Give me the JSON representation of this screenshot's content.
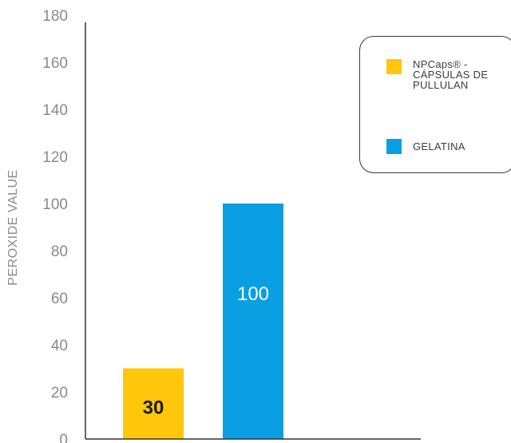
{
  "chart_data": {
    "type": "bar",
    "categories": [
      "NPCaps® - CÁPSULAS DE PULLULAN",
      "GELATINA"
    ],
    "values": [
      30,
      100
    ],
    "data_labels": [
      "30",
      "100"
    ],
    "colors": [
      "#FFC60B",
      "#0A9FE2"
    ],
    "ylabel": "PEROXIDE VALUE",
    "ylim": [
      0,
      180
    ],
    "yticks": [
      "0",
      "20",
      "40",
      "60",
      "80",
      "100",
      "120",
      "140",
      "160",
      "180"
    ],
    "grid": false,
    "legend_position": "top-right",
    "legend": [
      {
        "label": "NPCaps® -\nCÁPSULAS DE\nPULLULAN",
        "color": "#FFC60B"
      },
      {
        "label": "GELATINA",
        "color": "#0A9FE2"
      }
    ]
  }
}
